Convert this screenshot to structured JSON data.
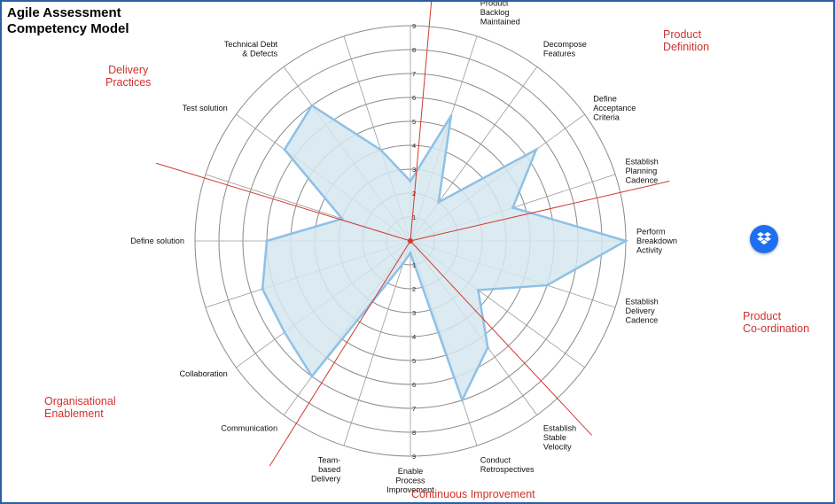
{
  "title": "Agile Assessment\nCompetency Model",
  "groups": [
    {
      "label": "Product\nDefinition"
    },
    {
      "label": "Product\nCo-ordination"
    },
    {
      "label": "Continuous Improvement"
    },
    {
      "label": "Organisational\nEnablement"
    },
    {
      "label": "Delivery\nPractices"
    }
  ],
  "icons": {
    "dropbox": "dropbox-icon"
  },
  "colors": {
    "grid": "#8a8a8a",
    "spoke": "#9a9a9a",
    "divider": "#d03a2e",
    "area_fill": "#d6e6ee",
    "area_stroke": "#8ec1e6",
    "group_text": "#d0312d"
  },
  "chart_data": {
    "type": "radar",
    "title": "Agile Assessment Competency Model",
    "r_ticks": [
      "1",
      "2",
      "3",
      "4",
      "5",
      "6",
      "7",
      "8",
      "9"
    ],
    "r_max": 9,
    "categories": [
      "",
      "Product\nBacklog\nMaintained",
      "Decompose\nFeatures",
      "Define\nAcceptance\nCriteria",
      "Establish\nPlanning\nCadence",
      "Perform\nBreakdown\nActivity",
      "Establish\nDelivery\nCadence",
      "",
      "Establish\nStable\nVelocity",
      "Conduct\nRetrospectives",
      "Enable\nProcess\nImprovement",
      "Team-\nbased\nDelivery",
      "Communication",
      "Collaboration",
      "",
      "Define solution",
      "",
      "Test solution",
      "Technical Debt\n& Defects",
      ""
    ],
    "values": [
      2.5,
      5.5,
      2,
      6.5,
      4.5,
      9,
      6,
      3.5,
      5.5,
      7,
      0.5,
      1,
      7,
      6.5,
      6.5,
      6,
      3,
      6.5,
      7,
      4
    ],
    "series": [
      {
        "values": [
          2.5,
          5.5,
          2,
          6.5,
          4.5,
          9,
          6,
          3.5,
          5.5,
          7,
          0.5,
          1,
          7,
          6.5,
          6.5,
          6,
          3,
          6.5,
          7,
          4
        ]
      }
    ],
    "divider_angles_deg": [
      5,
      77,
      137,
      212,
      287
    ]
  }
}
